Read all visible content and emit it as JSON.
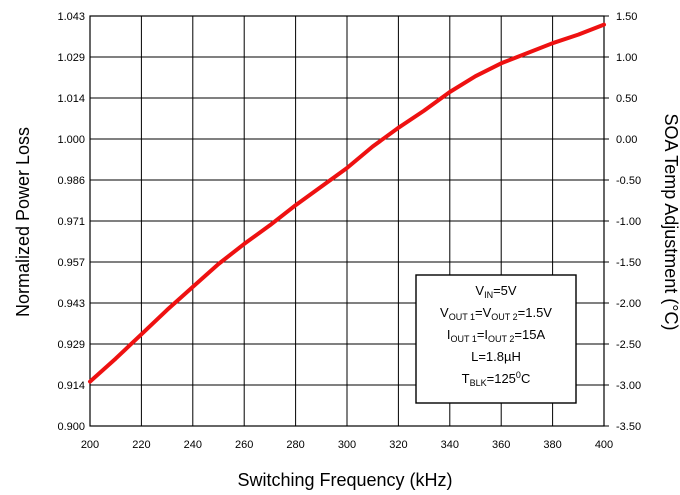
{
  "chart_data": {
    "type": "line",
    "title": "",
    "xlabel": "Switching Frequency (kHz)",
    "ylabel": "Normalized Power Loss",
    "y2label": "SOA Temp Adjustment (°C)",
    "xlim": [
      200,
      400
    ],
    "ylim": [
      0.9,
      1.043
    ],
    "y2lim": [
      -3.5,
      1.5
    ],
    "x_ticks": [
      "200",
      "220",
      "240",
      "260",
      "280",
      "300",
      "320",
      "340",
      "360",
      "380",
      "400"
    ],
    "y_ticks": [
      "0.900",
      "0.914",
      "0.929",
      "0.943",
      "0.957",
      "0.971",
      "0.986",
      "1.000",
      "1.014",
      "1.029",
      "1.043"
    ],
    "y2_ticks": [
      "-3.50",
      "-3.00",
      "-2.50",
      "-2.00",
      "-1.50",
      "-1.00",
      "-0.50",
      "0.00",
      "0.50",
      "1.00",
      "1.50"
    ],
    "grid": true,
    "series": [
      {
        "color": "#ee1111",
        "x": [
          200,
          210,
          220,
          230,
          240,
          250,
          260,
          270,
          280,
          290,
          300,
          310,
          320,
          330,
          340,
          350,
          360,
          370,
          380,
          390,
          400
        ],
        "y": [
          0.9155,
          0.9235,
          0.932,
          0.9405,
          0.9485,
          0.9565,
          0.9635,
          0.97,
          0.977,
          0.9835,
          0.99,
          0.9975,
          1.004,
          1.01,
          1.0165,
          1.022,
          1.0265,
          1.03,
          1.0335,
          1.0365,
          1.04
        ]
      }
    ],
    "annotation": {
      "lines": [
        {
          "main": "V",
          "sub": "IN",
          "rest": "=5V"
        },
        {
          "main": "V",
          "sub": "OUT 1",
          "mid": "=V",
          "sub2": "OUT 2",
          "rest": "=1.5V"
        },
        {
          "main": "I",
          "sub": "OUT 1",
          "mid": "=I",
          "sub2": "OUT 2",
          "rest": "=15A"
        },
        {
          "main": "L=1.8µH"
        },
        {
          "main": "T",
          "sub": "BLK",
          "rest": "=125",
          "sup": "0",
          "tail": "C"
        }
      ]
    }
  }
}
